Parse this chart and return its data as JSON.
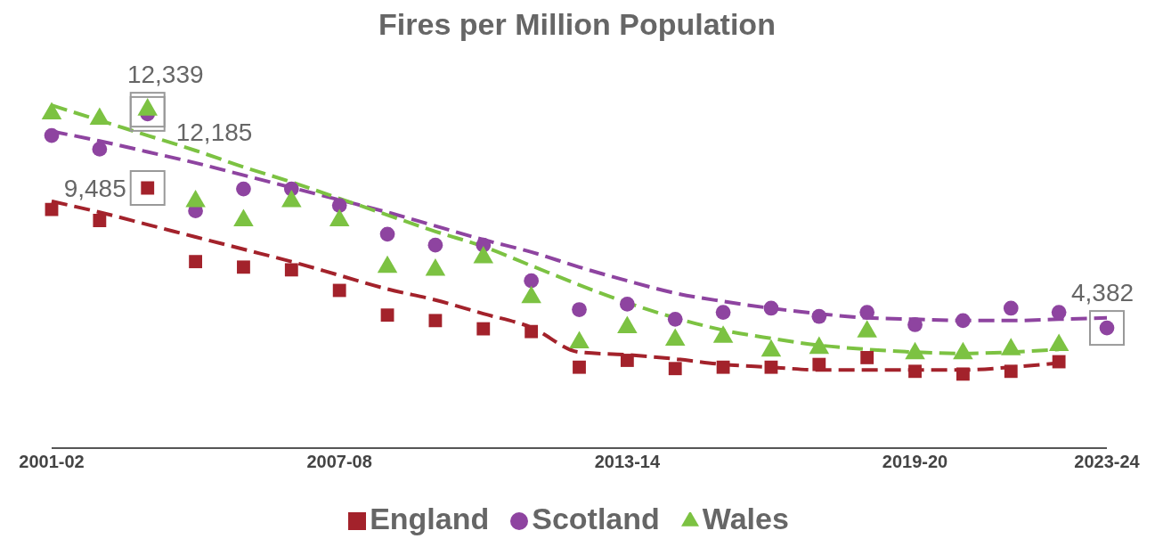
{
  "chart_data": {
    "type": "scatter",
    "title": "Fires per Million Population",
    "categories": [
      "2001-02",
      null,
      null,
      null,
      null,
      null,
      "2007-08",
      null,
      null,
      null,
      null,
      null,
      "2013-14",
      null,
      null,
      null,
      null,
      null,
      "2019-20",
      null,
      null,
      null,
      "2023-24"
    ],
    "legend": "bottom",
    "grid": false,
    "series": [
      {
        "name": "England",
        "marker": "square",
        "color": "#a3222b",
        "values": [
          8700,
          8300,
          9485,
          6800,
          6600,
          6500,
          5750,
          4850,
          4650,
          4350,
          4250,
          2950,
          3200,
          2900,
          2950,
          2950,
          3050,
          3300,
          2800,
          2700,
          2800,
          3150,
          null
        ],
        "value_labels": [
          null,
          null,
          "9,485",
          null,
          null,
          null,
          null,
          null,
          null,
          null,
          null,
          null,
          null,
          null,
          null,
          null,
          null,
          null,
          null,
          null,
          null,
          null,
          null
        ]
      },
      {
        "name": "Scotland",
        "marker": "circle",
        "color": "#8e44a0",
        "values": [
          11400,
          10900,
          12185,
          8650,
          9450,
          9450,
          8850,
          7800,
          7400,
          7400,
          6100,
          5050,
          5250,
          4700,
          4950,
          5100,
          4800,
          4950,
          4500,
          4650,
          5100,
          4950,
          4382
        ],
        "value_labels": [
          null,
          null,
          "12,185",
          null,
          null,
          null,
          null,
          null,
          null,
          null,
          null,
          null,
          null,
          null,
          null,
          null,
          null,
          null,
          null,
          null,
          null,
          null,
          "4,382"
        ]
      },
      {
        "name": "Wales",
        "marker": "triangle",
        "color": "#7cc242",
        "values": [
          12200,
          12000,
          12339,
          9000,
          8300,
          9000,
          8300,
          6600,
          6500,
          6950,
          5500,
          3850,
          4400,
          3950,
          4050,
          3550,
          3650,
          4250,
          3450,
          3450,
          3600,
          3750,
          null
        ],
        "value_labels": [
          null,
          null,
          "12,339",
          null,
          null,
          null,
          null,
          null,
          null,
          null,
          null,
          null,
          null,
          null,
          null,
          null,
          null,
          null,
          null,
          null,
          null,
          null,
          null
        ]
      },
      {
        "type": "line",
        "line_style": "dashed",
        "marker": "none",
        "color": "#a3222b",
        "values": [
          9000,
          8600,
          8150,
          7700,
          7250,
          6800,
          6300,
          5800,
          5400,
          4900,
          4400,
          3500,
          3400,
          3250,
          3050,
          2950,
          2850,
          2850,
          2850,
          2850,
          2950,
          3100,
          null
        ]
      },
      {
        "type": "line",
        "line_style": "dashed",
        "marker": "none",
        "color": "#8e44a0",
        "values": [
          11550,
          11200,
          10800,
          10400,
          9950,
          9500,
          9050,
          8600,
          8100,
          7600,
          7150,
          6600,
          6100,
          5650,
          5350,
          5100,
          4900,
          4750,
          4700,
          4650,
          4650,
          4700,
          4750
        ]
      },
      {
        "type": "line",
        "line_style": "dashed",
        "marker": "none",
        "color": "#7cc242",
        "values": [
          12500,
          11950,
          11400,
          10850,
          10250,
          9700,
          9100,
          8500,
          7900,
          7350,
          6650,
          5950,
          5300,
          4750,
          4300,
          4000,
          3750,
          3600,
          3500,
          3450,
          3500,
          3600,
          null
        ]
      }
    ]
  }
}
